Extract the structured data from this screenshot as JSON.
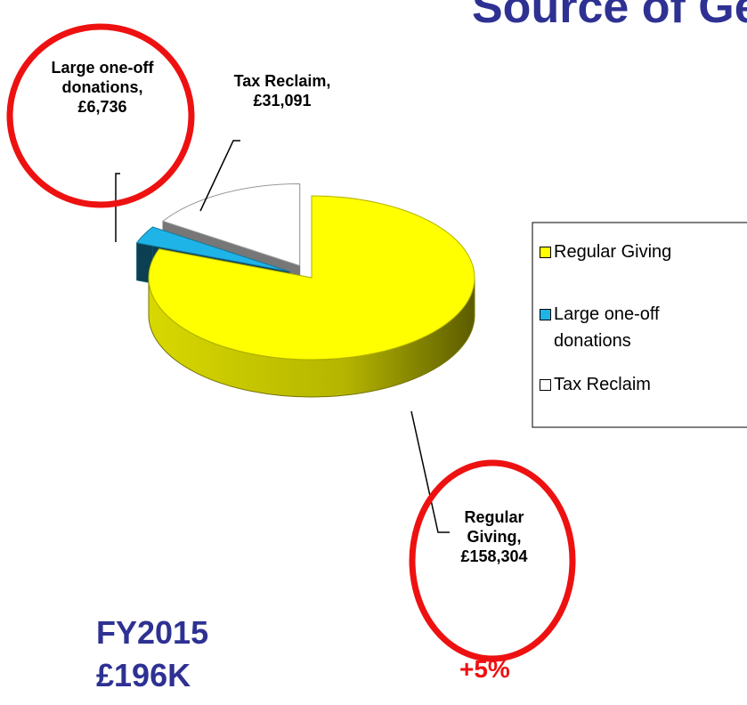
{
  "chart_data": {
    "type": "pie3d",
    "title": "Source of Gen",
    "categories": [
      "Regular Giving",
      "Large one-off donations",
      "Tax Reclaim"
    ],
    "values": [
      158304,
      6736,
      31091
    ],
    "value_labels": [
      "Regular Giving, £158,304",
      "Large one-off donations, £6,736",
      "Tax Reclaim, £31,091"
    ],
    "colors": [
      "#ffff00",
      "#1fb4e8",
      "#ffffff"
    ],
    "annotations": [
      "FY2015",
      "£196K",
      "+5%"
    ]
  }
}
